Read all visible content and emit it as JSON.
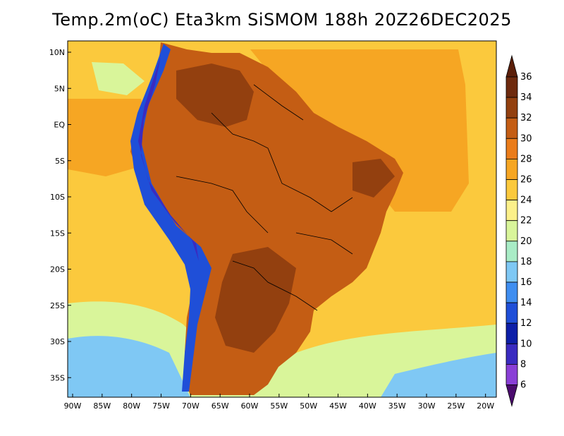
{
  "title": "Temp.2m(oC) Eta3km SiSMOM 188h 20Z26DEC2025",
  "variable": "2 m air temperature",
  "units": "oC",
  "model": "Eta3km SiSMOM",
  "forecast_hour": "188h",
  "valid_time": "20Z26DEC2025",
  "lat_range": [
    -38,
    12
  ],
  "lon_range": [
    -91,
    -20
  ],
  "lat_ticks": [
    {
      "value": 10,
      "label": "10N"
    },
    {
      "value": 5,
      "label": "5N"
    },
    {
      "value": 0,
      "label": "EQ"
    },
    {
      "value": -5,
      "label": "5S"
    },
    {
      "value": -10,
      "label": "10S"
    },
    {
      "value": -15,
      "label": "15S"
    },
    {
      "value": -20,
      "label": "20S"
    },
    {
      "value": -25,
      "label": "25S"
    },
    {
      "value": -30,
      "label": "30S"
    },
    {
      "value": -35,
      "label": "35S"
    }
  ],
  "lon_ticks": [
    {
      "value": -90,
      "label": "90W"
    },
    {
      "value": -85,
      "label": "85W"
    },
    {
      "value": -80,
      "label": "80W"
    },
    {
      "value": -75,
      "label": "75W"
    },
    {
      "value": -70,
      "label": "70W"
    },
    {
      "value": -65,
      "label": "65W"
    },
    {
      "value": -60,
      "label": "60W"
    },
    {
      "value": -55,
      "label": "55W"
    },
    {
      "value": -50,
      "label": "50W"
    },
    {
      "value": -45,
      "label": "45W"
    },
    {
      "value": -40,
      "label": "40W"
    },
    {
      "value": -35,
      "label": "35W"
    },
    {
      "value": -30,
      "label": "30W"
    },
    {
      "value": -25,
      "label": "25W"
    },
    {
      "value": -20,
      "label": "20W"
    }
  ],
  "colorbar": {
    "levels": [
      {
        "label": "36",
        "color": "#6e2a0e"
      },
      {
        "label": "34",
        "color": "#93400f"
      },
      {
        "label": "32",
        "color": "#c45d14"
      },
      {
        "label": "30",
        "color": "#ea7c1a"
      },
      {
        "label": "28",
        "color": "#f6a623"
      },
      {
        "label": "26",
        "color": "#fbc93d"
      },
      {
        "label": "24",
        "color": "#fcf08a"
      },
      {
        "label": "22",
        "color": "#d9f59a"
      },
      {
        "label": "20",
        "color": "#a9ecc6"
      },
      {
        "label": "18",
        "color": "#7fc8f4"
      },
      {
        "label": "16",
        "color": "#3f8ef0"
      },
      {
        "label": "14",
        "color": "#1f4fd8"
      },
      {
        "label": "12",
        "color": "#0d1fa8"
      },
      {
        "label": "10",
        "color": "#3a2bc0"
      },
      {
        "label": "8",
        "color": "#8a3fd6"
      },
      {
        "label": "6",
        "color": "#5a157c"
      }
    ],
    "top_color": "#5b1f0a",
    "bottom_color": "#4b0b6e"
  },
  "regions": [
    {
      "name": "ocean-south-cool",
      "temp": "16-20",
      "color": "#7fc8f4"
    },
    {
      "name": "ocean-south-mild",
      "temp": "22-24",
      "color": "#d9f59a"
    },
    {
      "name": "ocean-tropical",
      "temp": "26-28",
      "color": "#fbc93d"
    },
    {
      "name": "continent-interior",
      "temp": "30-32",
      "color": "#c45d14"
    },
    {
      "name": "chaco-hot-core",
      "temp": "34-36",
      "color": "#93400f"
    },
    {
      "name": "andes-cold",
      "temp": "6-18",
      "color": "#1f4fd8"
    }
  ]
}
